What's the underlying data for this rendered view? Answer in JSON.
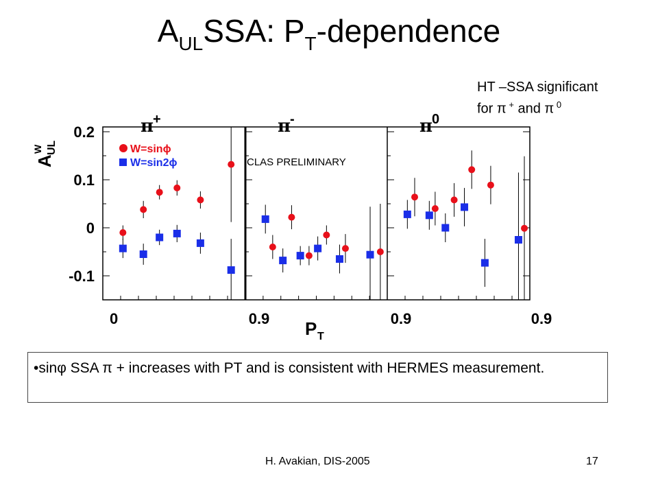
{
  "slide": {
    "title_main": "A",
    "title_sub": "UL",
    "title_mid": "SSA: P",
    "title_sub2": "T",
    "title_end": "-dependence",
    "note_line1": "HT –SSA significant",
    "note_line2_pre": "for ",
    "note_pi": "π",
    "note_plus": " +",
    "note_and": " and ",
    "note_pi2": "π",
    "note_zero": " 0",
    "bullet_text": "•sinφ SSA π + increases with PT and is consistent with HERMES measurement.",
    "footer_left": "H. Avakian, DIS-2005",
    "footer_right": "17"
  },
  "chart_data": {
    "type": "scatter",
    "ylabel": "A_UL^W",
    "ylabel_main": "A",
    "ylabel_sub": "UL",
    "ylabel_sup": "W",
    "xlabel": "P_T",
    "xlabel_main": "P",
    "xlabel_sub": "T",
    "annotation": "CLAS PRELIMINARY",
    "ylim": [
      -0.15,
      0.21
    ],
    "yticks": [
      "0.2",
      "0.1",
      "0",
      "-0.1"
    ],
    "ytick_values": [
      0.2,
      0.1,
      0,
      -0.1
    ],
    "xlim": [
      0,
      0.9
    ],
    "xtick_labels": [
      "0",
      "0.9",
      "0.9",
      "0.9"
    ],
    "legend": [
      {
        "label": "W=sinϕ",
        "color": "#e8101a",
        "marker": "circle"
      },
      {
        "label": "W=sin2ϕ",
        "color": "#1a2ee8",
        "marker": "square"
      }
    ],
    "panels": [
      {
        "label": "π+",
        "series": [
          {
            "name": "W=sinϕ",
            "x": [
              0.1,
              0.24,
              0.35,
              0.47,
              0.63,
              0.84
            ],
            "y": [
              -0.01,
              0.038,
              0.074,
              0.083,
              0.058,
              0.132
            ],
            "err": [
              0.015,
              0.018,
              0.015,
              0.016,
              0.018,
              0.12
            ]
          },
          {
            "name": "W=sin2ϕ",
            "x": [
              0.1,
              0.24,
              0.35,
              0.47,
              0.63,
              0.84
            ],
            "y": [
              -0.043,
              -0.055,
              -0.02,
              -0.012,
              -0.032,
              -0.088
            ],
            "err": [
              0.02,
              0.022,
              0.016,
              0.018,
              0.022,
              0.065
            ]
          }
        ]
      },
      {
        "label": "π-",
        "series": [
          {
            "name": "W=sinϕ",
            "x": [
              0.15,
              0.28,
              0.4,
              0.52,
              0.65,
              0.89
            ],
            "y": [
              -0.04,
              0.022,
              -0.058,
              -0.015,
              -0.043,
              -0.05
            ],
            "err": [
              0.025,
              0.025,
              0.02,
              0.02,
              0.03,
              0.1
            ]
          },
          {
            "name": "W=sin2ϕ",
            "x": [
              0.1,
              0.22,
              0.34,
              0.46,
              0.61,
              0.82
            ],
            "y": [
              0.018,
              -0.068,
              -0.058,
              -0.043,
              -0.065,
              -0.056
            ],
            "err": [
              0.03,
              0.025,
              0.02,
              0.025,
              0.03,
              0.1
            ]
          }
        ]
      },
      {
        "label": "π0",
        "series": [
          {
            "name": "W=sinϕ",
            "x": [
              0.15,
              0.29,
              0.42,
              0.54,
              0.67,
              0.9
            ],
            "y": [
              0.064,
              0.04,
              0.058,
              0.121,
              0.089,
              -0.001
            ],
            "err": [
              0.04,
              0.035,
              0.035,
              0.04,
              0.04,
              0.15
            ]
          },
          {
            "name": "W=sin2ϕ",
            "x": [
              0.1,
              0.25,
              0.36,
              0.49,
              0.63,
              0.86
            ],
            "y": [
              0.028,
              0.026,
              0.0,
              0.043,
              -0.073,
              -0.025
            ],
            "err": [
              0.03,
              0.03,
              0.03,
              0.04,
              0.05,
              0.14
            ]
          }
        ]
      }
    ]
  }
}
